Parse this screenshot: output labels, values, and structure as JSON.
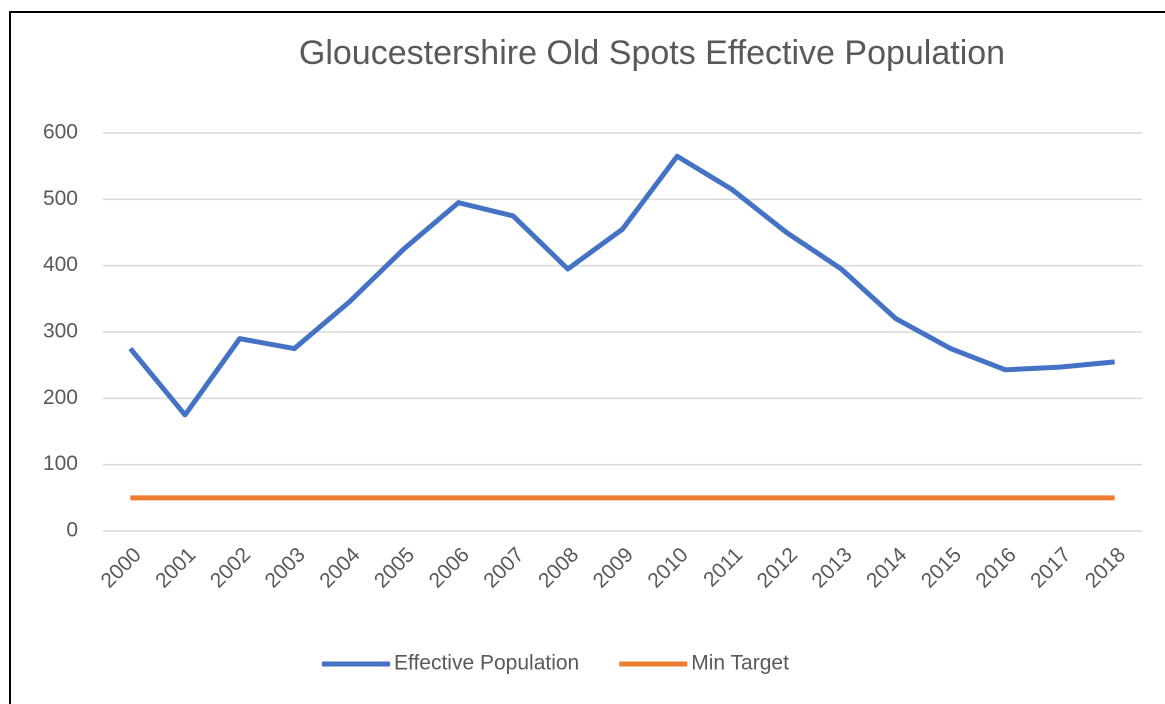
{
  "chart_data": {
    "type": "line",
    "title": "Gloucestershire Old Spots Effective Population",
    "categories": [
      "2000",
      "2001",
      "2002",
      "2003",
      "2004",
      "2005",
      "2006",
      "2007",
      "2008",
      "2009",
      "2010",
      "2011",
      "2012",
      "2013",
      "2014",
      "2015",
      "2016",
      "2017",
      "2018"
    ],
    "series": [
      {
        "name": "Effective Population",
        "color": "#4472c4",
        "values": [
          275,
          175,
          290,
          275,
          345,
          425,
          495,
          475,
          395,
          455,
          565,
          515,
          450,
          395,
          320,
          275,
          243,
          247,
          255
        ]
      },
      {
        "name": "Min Target",
        "color": "#ed7d31",
        "values": [
          50,
          50,
          50,
          50,
          50,
          50,
          50,
          50,
          50,
          50,
          50,
          50,
          50,
          50,
          50,
          50,
          50,
          50,
          50
        ]
      }
    ],
    "ylim": [
      0,
      600
    ],
    "yticks": [
      0,
      100,
      200,
      300,
      400,
      500,
      600
    ],
    "grid": true,
    "legend": "bottom"
  }
}
